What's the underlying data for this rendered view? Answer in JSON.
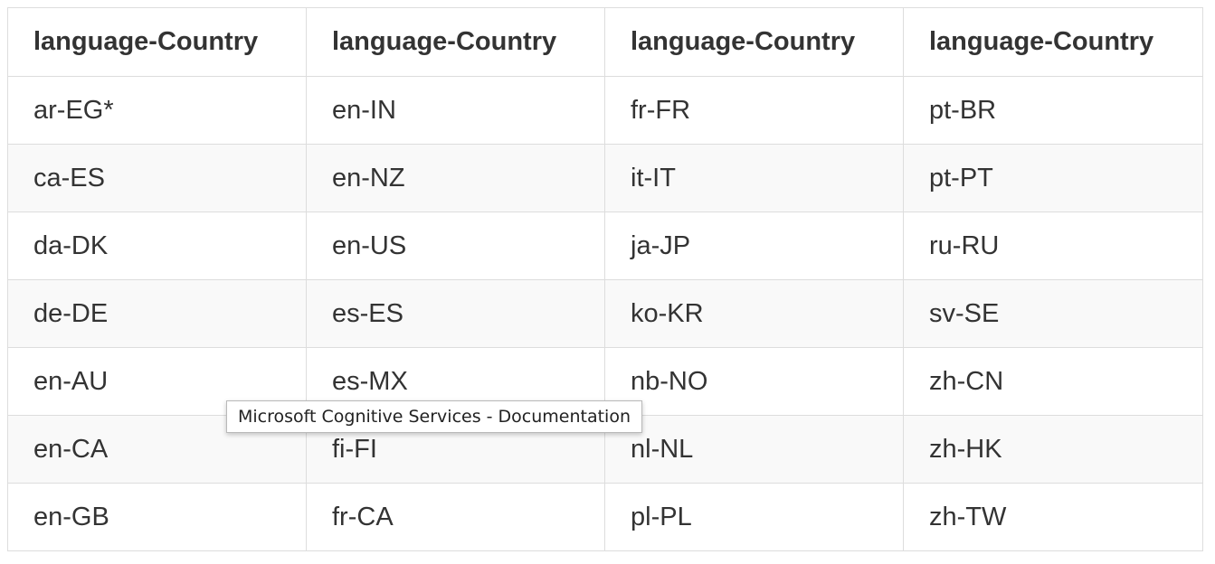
{
  "table": {
    "headers": [
      "language-Country",
      "language-Country",
      "language-Country",
      "language-Country"
    ],
    "rows": [
      [
        "ar-EG*",
        "en-IN",
        "fr-FR",
        "pt-BR"
      ],
      [
        "ca-ES",
        "en-NZ",
        "it-IT",
        "pt-PT"
      ],
      [
        "da-DK",
        "en-US",
        "ja-JP",
        "ru-RU"
      ],
      [
        "de-DE",
        "es-ES",
        "ko-KR",
        "sv-SE"
      ],
      [
        "en-AU",
        "es-MX",
        "nb-NO",
        "zh-CN"
      ],
      [
        "en-CA",
        "fi-FI",
        "nl-NL",
        "zh-HK"
      ],
      [
        "en-GB",
        "fr-CA",
        "pl-PL",
        "zh-TW"
      ]
    ]
  },
  "tooltip": {
    "text": "Microsoft Cognitive Services - Documentation"
  }
}
